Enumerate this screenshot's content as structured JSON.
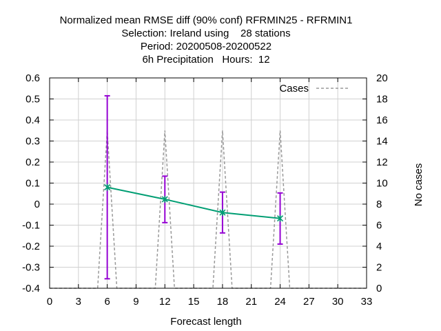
{
  "chart_data": {
    "type": "line",
    "title_lines": [
      "Normalized mean RMSE diff (90% conf) RFRMIN25 - RFRMIN1",
      "Selection: Ireland using    28 stations",
      "Period: 20200508-20200522",
      "6h Precipitation   Hours:  12"
    ],
    "xlabel": "Forecast length",
    "ylabel": "",
    "y2label": "No cases",
    "xlim": [
      0,
      33
    ],
    "ylim": [
      -0.4,
      0.6
    ],
    "y2lim": [
      0,
      20
    ],
    "x_ticks": [
      "0",
      "3",
      "6",
      "9",
      "12",
      "15",
      "18",
      "21",
      "24",
      "27",
      "30",
      "33"
    ],
    "y_ticks": [
      "-0.4",
      "-0.3",
      "-0.2",
      "-0.1",
      "0",
      "0.1",
      "0.2",
      "0.3",
      "0.4",
      "0.5",
      "0.6"
    ],
    "y2_ticks": [
      "0",
      "2",
      "4",
      "6",
      "8",
      "10",
      "12",
      "14",
      "16",
      "18",
      "20"
    ],
    "grid": true,
    "legend_position": "top-right",
    "series": [
      {
        "name": "",
        "axis": "left",
        "style": "line-with-errorbars",
        "color": "#009e73",
        "errorbar_color": "#9400d3",
        "x": [
          6,
          12,
          18,
          24
        ],
        "values": [
          0.08,
          0.023,
          -0.04,
          -0.068
        ],
        "lower": [
          -0.355,
          -0.088,
          -0.137,
          -0.19
        ],
        "upper": [
          0.515,
          0.133,
          0.057,
          0.053
        ]
      },
      {
        "name": "Cases",
        "axis": "right",
        "style": "dashed",
        "color": "#999999",
        "x": [
          0,
          5,
          6,
          7,
          11,
          12,
          13,
          17,
          18,
          19,
          23,
          24,
          25,
          33
        ],
        "values": [
          0,
          0,
          15,
          0,
          0,
          15,
          0,
          0,
          15,
          0,
          0,
          15,
          0,
          0
        ]
      }
    ]
  }
}
